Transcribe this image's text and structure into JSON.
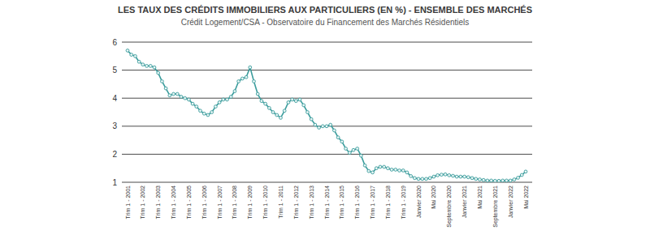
{
  "chart_data": {
    "type": "line",
    "title": "LES TAUX DES CRÉDITS IMMOBILIERS AUX PARTICULIERS (EN %) - ENSEMBLE DES MARCHÉS",
    "subtitle": "Crédit Logement/CSA - Observatoire du Financement des Marchés Résidentiels",
    "categories": [
      "Trim 1 - 2001",
      null,
      null,
      null,
      "Trim 1 - 2002",
      null,
      null,
      null,
      "Trim 1 - 2003",
      null,
      null,
      null,
      "Trim 1 - 2004",
      null,
      null,
      null,
      "Trim 1 - 2005",
      null,
      null,
      null,
      "Trim 1 - 2006",
      null,
      null,
      null,
      "Trim 1 - 2007",
      null,
      null,
      null,
      "Trim 1 - 2008",
      null,
      null,
      null,
      "Trim 1 - 2009",
      null,
      null,
      null,
      "Trim 1 - 2010",
      null,
      null,
      null,
      "Trim 1 - 2011",
      null,
      null,
      null,
      "Trim 1 - 2012",
      null,
      null,
      null,
      "Trim 1 - 2013",
      null,
      null,
      null,
      "Trim 1 - 2014",
      null,
      null,
      null,
      "Trim 1 - 2015",
      null,
      null,
      null,
      "Trim 1 - 2016",
      null,
      null,
      null,
      "Trim 1 - 2017",
      null,
      null,
      null,
      "Trim 1 - 2018",
      null,
      null,
      null,
      "Trim 1 - 2019",
      null,
      null,
      null,
      "Janvier 2020",
      null,
      null,
      null,
      "Mai 2020",
      null,
      null,
      null,
      "Septembre 2020",
      null,
      null,
      null,
      "Janvier 2021",
      null,
      null,
      null,
      "Mai 2021",
      null,
      null,
      null,
      "Septembre 2021",
      null,
      null,
      null,
      "Janvier 2022",
      null,
      null,
      null,
      "Mai 2022"
    ],
    "values": [
      5.7,
      5.55,
      5.5,
      5.3,
      5.2,
      5.15,
      5.15,
      5.1,
      4.9,
      4.6,
      4.35,
      4.1,
      4.15,
      4.15,
      4.05,
      4.0,
      3.95,
      3.8,
      3.7,
      3.55,
      3.45,
      3.4,
      3.5,
      3.7,
      3.85,
      3.95,
      3.95,
      4.05,
      4.25,
      4.6,
      4.7,
      4.75,
      5.1,
      4.6,
      4.15,
      3.9,
      3.8,
      3.65,
      3.5,
      3.4,
      3.3,
      3.55,
      3.85,
      3.95,
      3.9,
      3.95,
      3.75,
      3.5,
      3.25,
      3.05,
      2.95,
      3.0,
      3.0,
      3.05,
      2.85,
      2.6,
      2.45,
      2.2,
      2.05,
      2.15,
      2.2,
      1.95,
      1.6,
      1.4,
      1.35,
      1.5,
      1.55,
      1.55,
      1.5,
      1.45,
      1.45,
      1.42,
      1.42,
      1.35,
      1.22,
      1.15,
      1.12,
      1.12,
      1.12,
      1.15,
      1.2,
      1.25,
      1.27,
      1.28,
      1.25,
      1.23,
      1.2,
      1.2,
      1.2,
      1.18,
      1.15,
      1.12,
      1.1,
      1.08,
      1.06,
      1.06,
      1.05,
      1.05,
      1.06,
      1.06,
      1.06,
      1.1,
      1.16,
      1.26,
      1.38
    ],
    "color": "#3b9c9c",
    "marker": "circle",
    "ylim": [
      1,
      6
    ],
    "yticks": [
      1,
      2,
      3,
      4,
      5,
      6
    ],
    "grid": true
  }
}
